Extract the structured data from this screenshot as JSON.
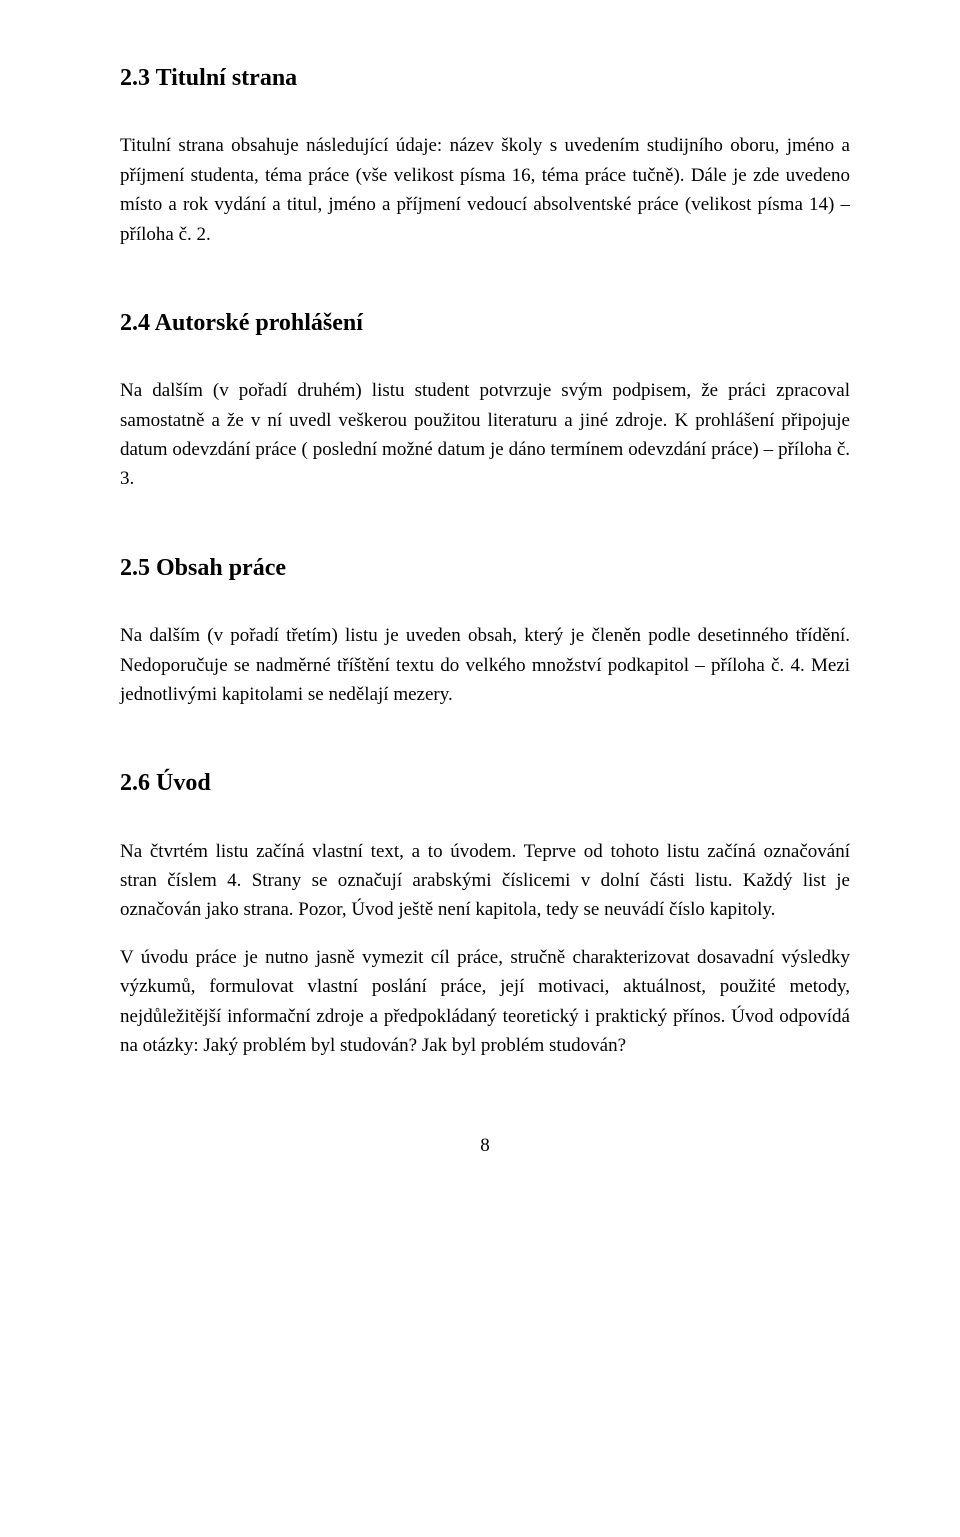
{
  "sections": {
    "s23": {
      "heading": "2.3  Titulní strana",
      "p1": "Titulní strana obsahuje následující údaje:  název školy s uvedením studijního oboru, jméno a příjmení studenta, téma práce  (vše velikost písma 16, téma práce tučně). Dále je zde uvedeno místo a rok vydání a titul, jméno a příjmení vedoucí absolventské práce  (velikost písma 14) – příloha č. 2."
    },
    "s24": {
      "heading": "2.4  Autorské prohlášení",
      "p1": "Na dalším (v pořadí druhém) listu student potvrzuje svým podpisem, že práci zpracoval samostatně a že v ní uvedl veškerou použitou literaturu a jiné zdroje. K prohlášení připojuje datum odevzdání práce ( poslední možné datum je dáno termínem odevzdání práce) – příloha č. 3."
    },
    "s25": {
      "heading": "2.5  Obsah práce",
      "p1": "Na dalším (v pořadí třetím) listu je uveden obsah, který je členěn podle desetinného třídění. Nedoporučuje se nadměrné tříštění textu do velkého množství podkapitol – příloha č. 4. Mezi jednotlivými kapitolami se nedělají mezery."
    },
    "s26": {
      "heading": "2.6  Úvod",
      "p1": "Na čtvrtém listu začíná vlastní text, a to úvodem. Teprve od tohoto listu začíná označování stran číslem 4. Strany se označují arabskými číslicemi v dolní části listu. Každý list je označován jako strana. Pozor, Úvod ještě není kapitola, tedy se neuvádí číslo kapitoly.",
      "p2": "V úvodu práce je nutno jasně vymezit cíl práce, stručně charakterizovat dosavadní výsledky výzkumů, formulovat vlastní poslání práce, její motivaci, aktuálnost, použité metody, nejdůležitější informační zdroje a předpokládaný teoretický i praktický přínos. Úvod odpovídá na otázky: Jaký problém byl studován? Jak byl problém studován?"
    }
  },
  "page_number": "8"
}
